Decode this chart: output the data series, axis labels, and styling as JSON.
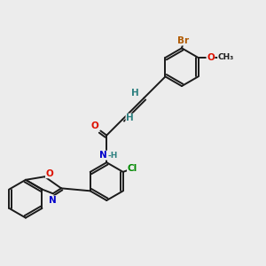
{
  "bg_color": "#ececec",
  "bond_color": "#1a1a1a",
  "atom_colors": {
    "Br": "#b05a00",
    "O": "#dd1100",
    "N": "#0000cc",
    "Cl": "#008800",
    "H": "#2d8080",
    "C": "#1a1a1a"
  },
  "bond_lw": 1.4,
  "font_size": 7.5
}
